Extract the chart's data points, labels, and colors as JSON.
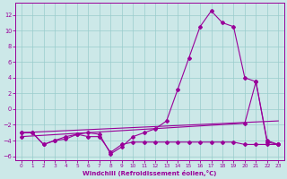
{
  "xlabel": "Windchill (Refroidissement éolien,°C)",
  "bg_color": "#cce8e8",
  "grid_color": "#99cccc",
  "line_color": "#990099",
  "xlim": [
    -0.5,
    23.5
  ],
  "ylim": [
    -6.5,
    13.5
  ],
  "xticks": [
    0,
    1,
    2,
    3,
    4,
    5,
    6,
    7,
    8,
    9,
    10,
    11,
    12,
    13,
    14,
    15,
    16,
    17,
    18,
    19,
    20,
    21,
    22,
    23
  ],
  "yticks": [
    -6,
    -4,
    -2,
    0,
    2,
    4,
    6,
    8,
    10,
    12
  ],
  "line1_x": [
    0,
    1,
    2,
    3,
    4,
    5,
    6,
    7,
    8,
    9,
    10,
    11,
    12,
    13,
    14,
    15,
    16,
    17,
    18,
    19,
    20,
    21,
    22,
    23
  ],
  "line1_y": [
    -3.0,
    -3.0,
    -4.5,
    -4.0,
    -3.8,
    -3.2,
    -3.5,
    -3.5,
    -5.5,
    -4.5,
    -4.2,
    -4.2,
    -4.2,
    -4.2,
    -4.2,
    -4.2,
    -4.2,
    -4.2,
    -4.2,
    -4.2,
    -4.5,
    -4.5,
    -4.5,
    -4.5
  ],
  "line2_x": [
    0,
    1,
    2,
    3,
    4,
    5,
    6,
    7,
    8,
    9,
    10,
    11,
    12,
    13,
    14,
    15,
    16,
    17,
    18,
    19,
    20,
    21,
    22,
    23
  ],
  "line2_y": [
    -3.0,
    -3.0,
    -4.5,
    -4.0,
    -3.5,
    -3.2,
    -3.0,
    -3.2,
    -5.7,
    -4.8,
    -3.5,
    -3.0,
    -2.5,
    -1.5,
    2.5,
    6.5,
    10.5,
    12.5,
    11.0,
    10.5,
    4.0,
    3.5,
    -4.2,
    -4.5
  ],
  "line3_x": [
    0,
    23
  ],
  "line3_y": [
    -3.0,
    -1.5
  ],
  "line4_x": [
    0,
    20,
    21,
    22,
    23
  ],
  "line4_y": [
    -3.5,
    -1.8,
    3.5,
    -4.0,
    -4.5
  ]
}
